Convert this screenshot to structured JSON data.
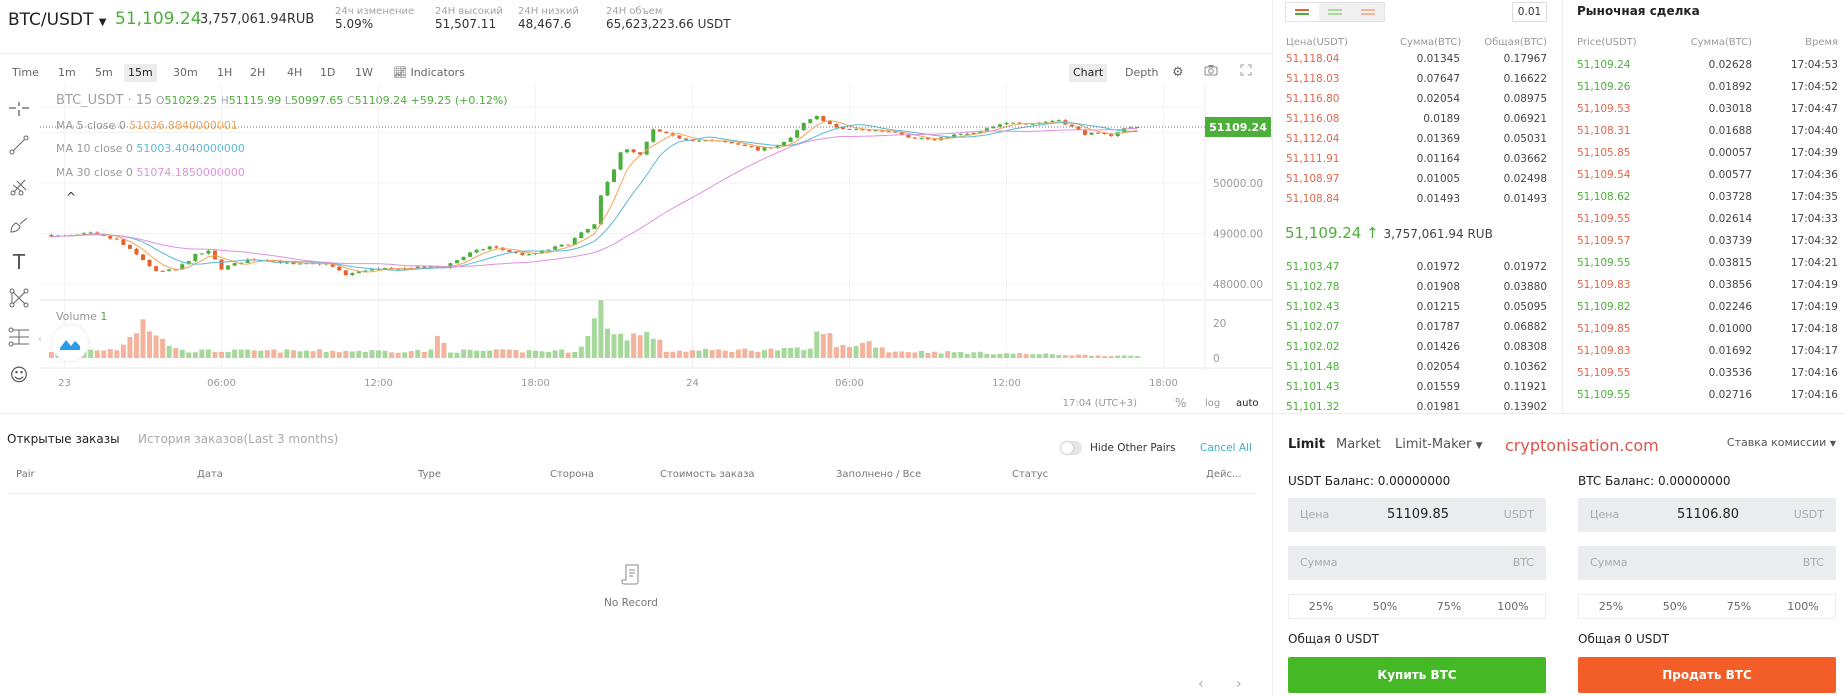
{
  "header": {
    "pair": "BTC/USDT",
    "last_price": "51,109.24",
    "last_price_rub": "3,757,061.94RUB",
    "stats": [
      {
        "label": "24ч изменение",
        "value": "5.09%"
      },
      {
        "label": "24H высокий",
        "value": "51,507.11"
      },
      {
        "label": "24H низкий",
        "value": "48,467.6"
      },
      {
        "label": "24H объем",
        "value": "65,623,223.66 USDT"
      }
    ]
  },
  "chart_toolbar": {
    "timeframes": [
      "Time",
      "1m",
      "5m",
      "15m",
      "30m",
      "1H",
      "2H",
      "4H",
      "1D",
      "1W"
    ],
    "selected": "15m",
    "indicators": "Indicators",
    "chart": "Chart",
    "depth": "Depth"
  },
  "legend": {
    "symbol": "BTC_USDT · 15",
    "o": "O",
    "o_val": "51029.25",
    "h": "H",
    "h_val": "51115.99",
    "l": "L",
    "l_val": "50997.65",
    "c": "C",
    "c_val": "51109.24",
    "change": "+59.25 (+0.12%)",
    "ma5_label": "MA 5 close 0",
    "ma5": "51036.8840000001",
    "ma10_label": "MA 10 close 0",
    "ma10": "51003.4040000000",
    "ma30_label": "MA 30 close 0",
    "ma30": "51074.1850000000",
    "volume_label": "Volume",
    "volume_val": "1",
    "collapse": "^"
  },
  "chart_footer": {
    "time": "17:04 (UTC+3)",
    "percent": "%",
    "log": "log",
    "auto": "auto"
  },
  "colors": {
    "up": "#4caf3a",
    "down": "#e8612c",
    "ma5": "#f2a65a",
    "ma10": "#5bb8d6",
    "ma30": "#dd93dd",
    "buy": "#45b925",
    "sell": "#f35d27"
  },
  "chart_data": {
    "type": "candlestick",
    "interval": "15m",
    "price_ticks": [
      "50000.00",
      "49000.00",
      "48000.00"
    ],
    "price_ticks_values": [
      50000,
      49000,
      48000
    ],
    "current_price_label": "51109.24",
    "current_price": 51109.24,
    "volume_ticks": [
      "20",
      "0"
    ],
    "time_ticks": [
      "23",
      "06:00",
      "12:00",
      "18:00",
      "24",
      "06:00",
      "12:00",
      "18:00"
    ],
    "close_path": [
      [
        "22 23:30",
        48960
      ],
      [
        "23 00:00",
        48940
      ],
      [
        "23 01:00",
        49000
      ],
      [
        "23 02:00",
        48870
      ],
      [
        "23 03:00",
        48480
      ],
      [
        "23 03:30",
        48240
      ],
      [
        "23 04:15",
        48280
      ],
      [
        "23 05:00",
        48570
      ],
      [
        "23 05:30",
        48640
      ],
      [
        "23 06:00",
        48310
      ],
      [
        "23 07:00",
        48480
      ],
      [
        "23 07:45",
        48490
      ],
      [
        "23 08:45",
        48380
      ],
      [
        "23 10:00",
        48410
      ],
      [
        "23 10:45",
        48180
      ],
      [
        "23 11:30",
        48280
      ],
      [
        "23 13:00",
        48310
      ],
      [
        "23 14:30",
        48340
      ],
      [
        "23 15:30",
        48610
      ],
      [
        "23 16:15",
        48740
      ],
      [
        "23 17:15",
        48610
      ],
      [
        "23 17:45",
        48570
      ],
      [
        "23 19:15",
        48800
      ],
      [
        "23 19:45",
        49000
      ],
      [
        "23 20:15",
        49170
      ],
      [
        "23 20:30",
        49730
      ],
      [
        "23 21:00",
        50290
      ],
      [
        "23 21:15",
        50620
      ],
      [
        "23 21:30",
        50650
      ],
      [
        "23 22:00",
        50550
      ],
      [
        "23 22:30",
        51050
      ],
      [
        "23 23:15",
        50920
      ],
      [
        "24 00:00",
        50850
      ],
      [
        "24 01:00",
        50820
      ],
      [
        "24 02:00",
        50750
      ],
      [
        "24 02:30",
        50650
      ],
      [
        "24 03:15",
        50750
      ],
      [
        "24 03:45",
        50880
      ],
      [
        "24 04:15",
        51180
      ],
      [
        "24 04:45",
        51310
      ],
      [
        "24 05:00",
        51250
      ],
      [
        "24 05:30",
        51080
      ],
      [
        "24 06:30",
        51050
      ],
      [
        "24 07:45",
        51020
      ],
      [
        "24 08:15",
        50920
      ],
      [
        "24 09:15",
        50850
      ],
      [
        "24 10:00",
        50950
      ],
      [
        "24 10:45",
        50980
      ],
      [
        "24 11:30",
        51110
      ],
      [
        "24 12:15",
        51210
      ],
      [
        "24 13:00",
        51180
      ],
      [
        "24 14:00",
        51250
      ],
      [
        "24 14:30",
        51110
      ],
      [
        "24 15:00",
        50980
      ],
      [
        "24 16:00",
        50950
      ],
      [
        "24 16:30",
        51080
      ],
      [
        "24 17:00",
        51109.24
      ]
    ],
    "volume_path": [
      [
        "22 23:30",
        4
      ],
      [
        "23 02:00",
        5
      ],
      [
        "23 02:45",
        17
      ],
      [
        "23 03:00",
        23
      ],
      [
        "23 03:30",
        12
      ],
      [
        "23 04:30",
        4
      ],
      [
        "23 14:00",
        4
      ],
      [
        "23 14:15",
        12
      ],
      [
        "23 14:45",
        4
      ],
      [
        "23 19:30",
        4
      ],
      [
        "23 20:00",
        12
      ],
      [
        "23 20:30",
        29
      ],
      [
        "23 21:00",
        13
      ],
      [
        "23 22:30",
        13
      ],
      [
        "23 23:00",
        4
      ],
      [
        "24 04:30",
        5
      ],
      [
        "24 04:45",
        13
      ],
      [
        "24 05:00",
        18
      ],
      [
        "24 05:30",
        6
      ],
      [
        "24 06:45",
        9
      ],
      [
        "24 07:30",
        4
      ],
      [
        "24 17:00",
        1
      ]
    ]
  },
  "orderbook": {
    "group": "0.01",
    "headers": [
      "Цена(USDT)",
      "Сумма(BTC)",
      "Общая(BTC)"
    ],
    "asks": [
      [
        "51,118.04",
        "0.01345",
        "0.17967"
      ],
      [
        "51,118.03",
        "0.07647",
        "0.16622"
      ],
      [
        "51,116.80",
        "0.02054",
        "0.08975"
      ],
      [
        "51,116.08",
        "0.0189",
        "0.06921"
      ],
      [
        "51,112.04",
        "0.01369",
        "0.05031"
      ],
      [
        "51,111.91",
        "0.01164",
        "0.03662"
      ],
      [
        "51,108.97",
        "0.01005",
        "0.02498"
      ],
      [
        "51,108.84",
        "0.01493",
        "0.01493"
      ]
    ],
    "mid_price": "51,109.24",
    "mid_arrow": "↑",
    "mid_rub": "3,757,061.94 RUB",
    "bids": [
      [
        "51,103.47",
        "0.01972",
        "0.01972"
      ],
      [
        "51,102.78",
        "0.01908",
        "0.03880"
      ],
      [
        "51,102.43",
        "0.01215",
        "0.05095"
      ],
      [
        "51,102.07",
        "0.01787",
        "0.06882"
      ],
      [
        "51,102.02",
        "0.01426",
        "0.08308"
      ],
      [
        "51,101.48",
        "0.02054",
        "0.10362"
      ],
      [
        "51,101.43",
        "0.01559",
        "0.11921"
      ],
      [
        "51,101.32",
        "0.01981",
        "0.13902"
      ]
    ]
  },
  "trades": {
    "title": "Рыночная сделка",
    "headers": [
      "Price(USDT)",
      "Сумма(BTC)",
      "Время"
    ],
    "rows": [
      [
        "51,109.24",
        "0.02628",
        "17:04:53",
        "buy"
      ],
      [
        "51,109.26",
        "0.01892",
        "17:04:52",
        "buy"
      ],
      [
        "51,109.53",
        "0.03018",
        "17:04:47",
        "sell"
      ],
      [
        "51,108.31",
        "0.01688",
        "17:04:40",
        "sell"
      ],
      [
        "51,105.85",
        "0.00057",
        "17:04:39",
        "sell"
      ],
      [
        "51,109.54",
        "0.00577",
        "17:04:36",
        "sell"
      ],
      [
        "51,108.62",
        "0.03728",
        "17:04:35",
        "buy"
      ],
      [
        "51,109.55",
        "0.02614",
        "17:04:33",
        "sell"
      ],
      [
        "51,109.57",
        "0.03739",
        "17:04:32",
        "sell"
      ],
      [
        "51,109.55",
        "0.03815",
        "17:04:21",
        "buy"
      ],
      [
        "51,109.83",
        "0.03856",
        "17:04:19",
        "sell"
      ],
      [
        "51,109.82",
        "0.02246",
        "17:04:19",
        "buy"
      ],
      [
        "51,109.85",
        "0.01000",
        "17:04:18",
        "sell"
      ],
      [
        "51,109.83",
        "0.01692",
        "17:04:17",
        "sell"
      ],
      [
        "51,109.55",
        "0.03536",
        "17:04:16",
        "sell"
      ],
      [
        "51,109.55",
        "0.02716",
        "17:04:16",
        "buy"
      ]
    ]
  },
  "orders": {
    "tabs": [
      "Открытые заказы",
      "История заказов(Last 3 months)"
    ],
    "hide_other_pairs": "Hide Other Pairs",
    "cancel_all": "Cancel All",
    "columns": [
      "Pair",
      "Дата",
      "Type",
      "Сторона",
      "Стоимость заказа",
      "Заполнено / Все",
      "Статус",
      "Дейс..."
    ],
    "empty": "No Record",
    "prev": "‹",
    "next": "›"
  },
  "trade_form": {
    "tabs": [
      "Limit",
      "Market",
      "Limit-Maker"
    ],
    "fee": "Ставка комиссии",
    "buy": {
      "balance": "USDT Баланс: 0.00000000",
      "price_label": "Цена",
      "price": "51109.85",
      "price_unit": "USDT",
      "amount_label": "Сумма",
      "amount_unit": "BTC",
      "total": "Общая 0 USDT",
      "button": "Купить BTC"
    },
    "sell": {
      "balance": "BTC Баланс: 0.00000000",
      "price_label": "Цена",
      "price": "51106.80",
      "price_unit": "USDT",
      "amount_label": "Сумма",
      "amount_unit": "BTC",
      "total": "Общая 0 USDT",
      "button": "Продать BTC"
    },
    "percents": [
      "25%",
      "50%",
      "75%",
      "100%"
    ]
  },
  "watermark": "cryptonisation.com"
}
